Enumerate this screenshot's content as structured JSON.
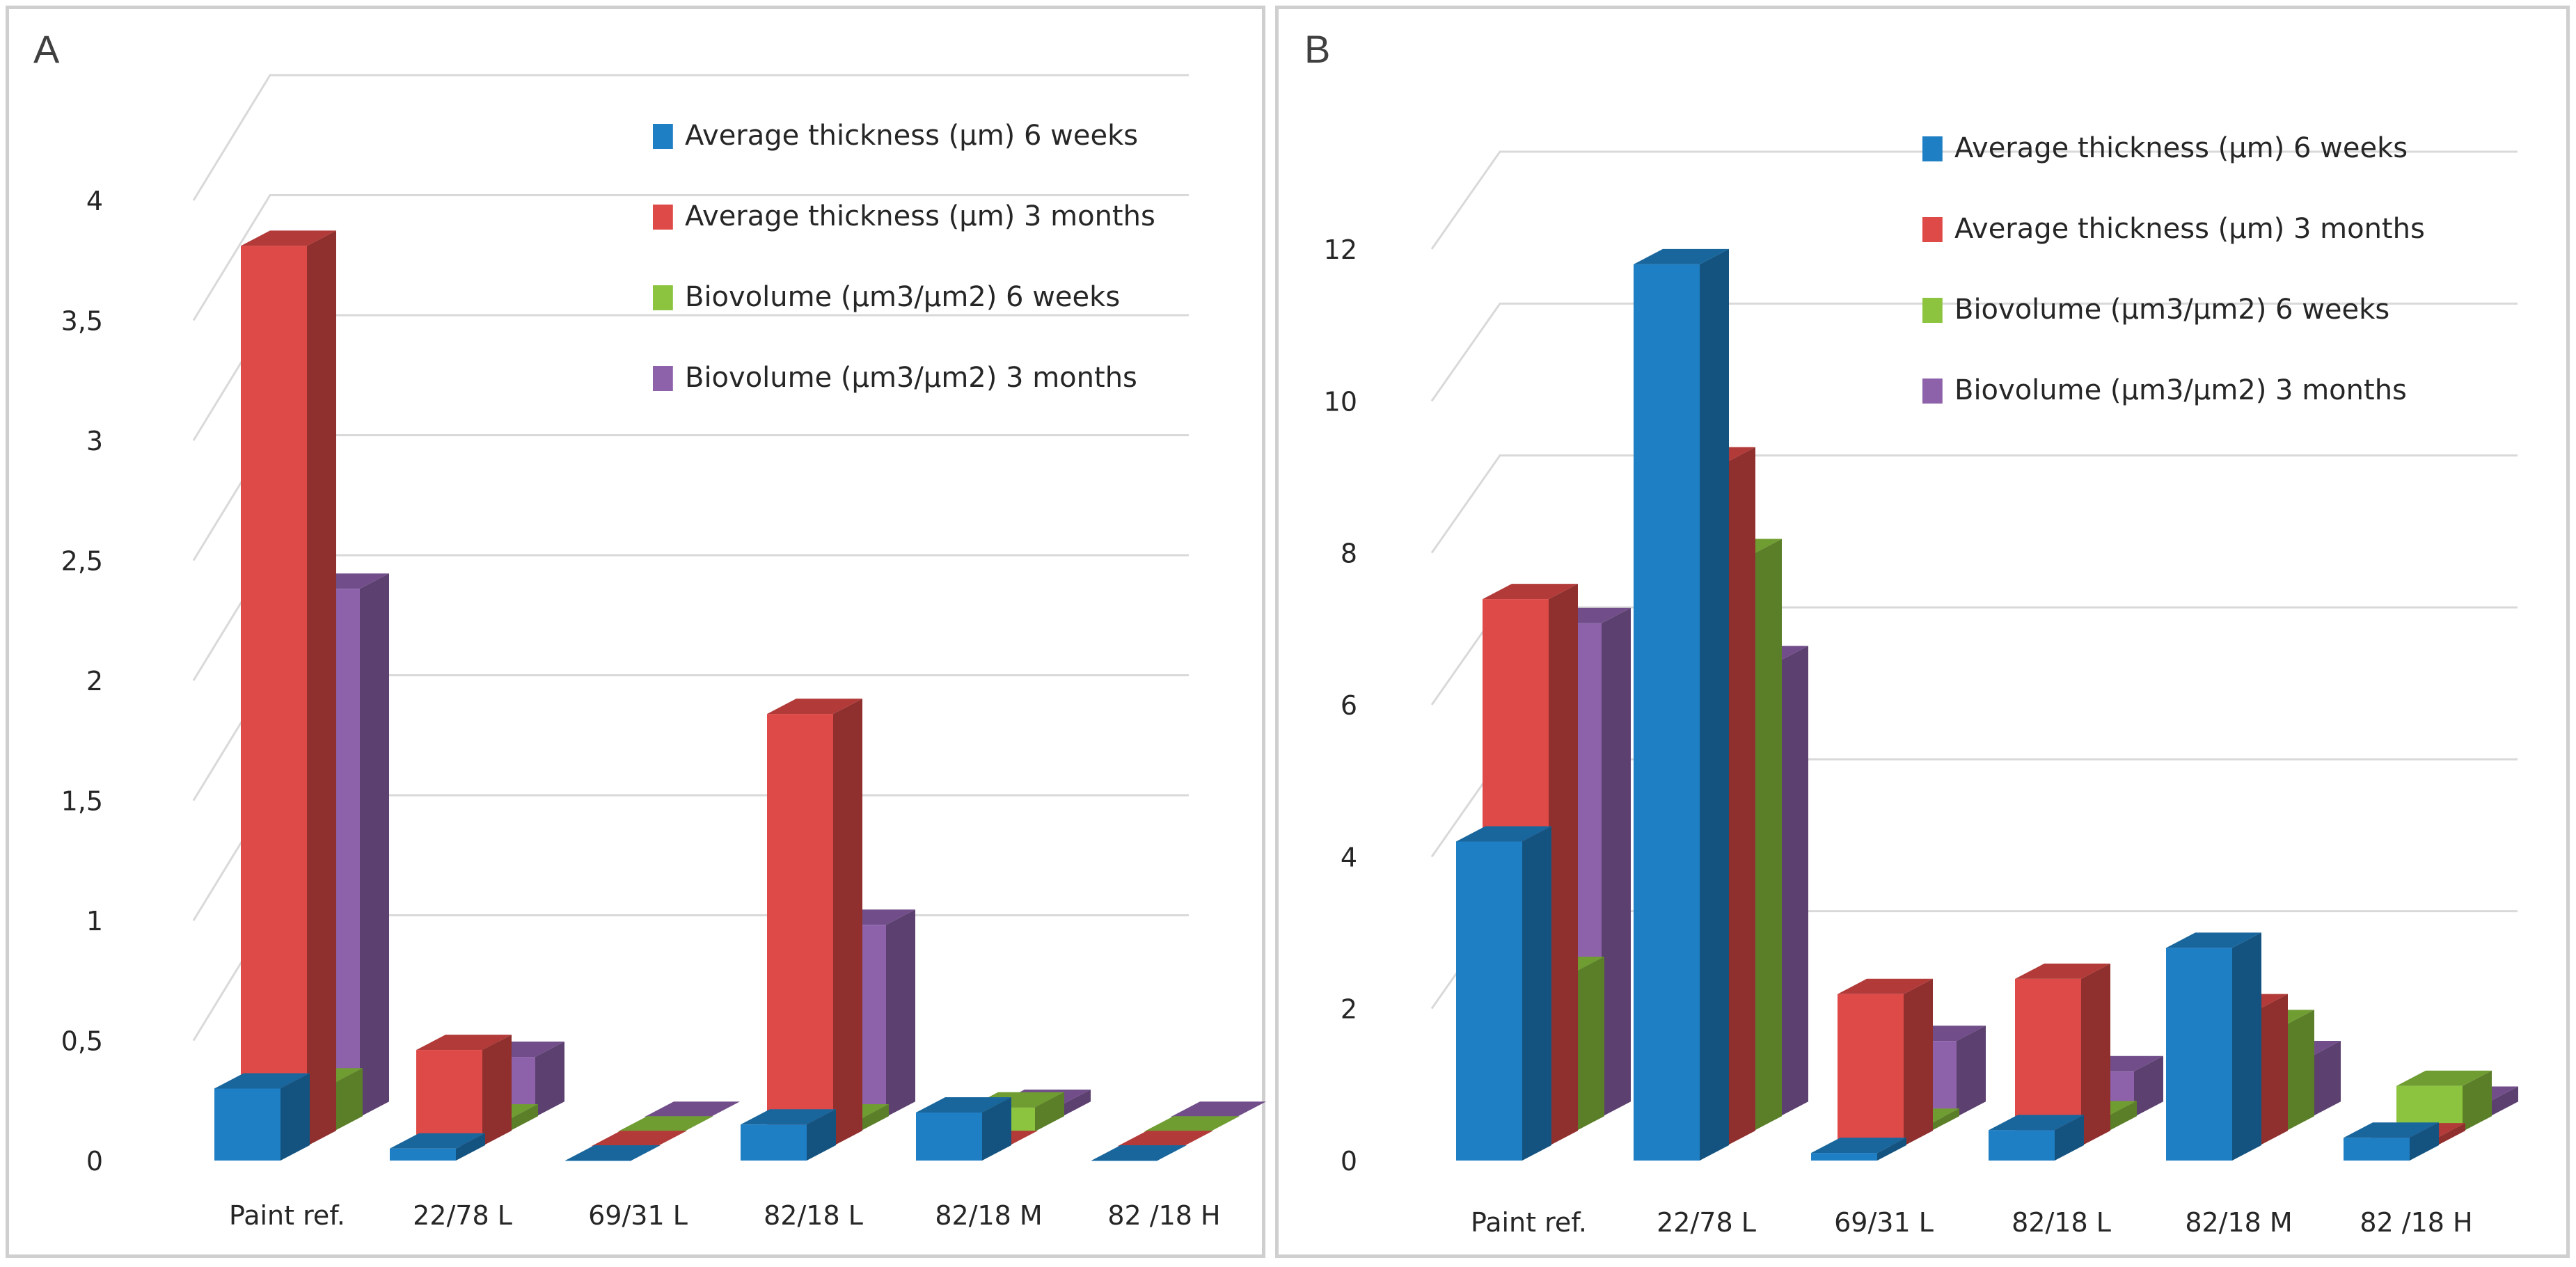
{
  "chart_data": [
    {
      "panel": "A",
      "type": "bar",
      "subtype": "3d-clustered-column",
      "title": "",
      "xlabel": "",
      "ylabel": "",
      "ylim": [
        0,
        4
      ],
      "ytick_labels": [
        "0",
        "0,5",
        "1",
        "1,5",
        "2",
        "2,5",
        "3",
        "3,5",
        "4"
      ],
      "gridlines": true,
      "legend_position": "top-right",
      "categories": [
        "Paint ref.",
        "22/78 L",
        "69/31 L",
        "82/18 L",
        "82/18 M",
        "82 /18 H"
      ],
      "series": [
        {
          "name": "Average thickness (µm) 6 weeks",
          "color": "#1f7fc4",
          "values": [
            0.3,
            0.05,
            0.0,
            0.15,
            0.2,
            0.0
          ]
        },
        {
          "name": "Average thickness (µm) 3 months",
          "color": "#de4a47",
          "values": [
            3.75,
            0.4,
            0.0,
            1.8,
            0.0,
            0.0
          ]
        },
        {
          "name": "Biovolume (µm3/µm2) 6 weeks",
          "color": "#8cc43f",
          "values": [
            0.2,
            0.05,
            0.0,
            0.05,
            0.1,
            0.0
          ]
        },
        {
          "name": "Biovolume (µm3/µm2) 3 months",
          "color": "#8d62ab",
          "values": [
            2.2,
            0.25,
            0.0,
            0.8,
            0.05,
            0.0
          ]
        }
      ]
    },
    {
      "panel": "B",
      "type": "bar",
      "subtype": "3d-clustered-column",
      "title": "",
      "xlabel": "",
      "ylabel": "",
      "ylim": [
        0,
        12
      ],
      "ytick_labels": [
        "0",
        "2",
        "4",
        "6",
        "8",
        "10",
        "12"
      ],
      "gridlines": true,
      "legend_position": "top-right",
      "categories": [
        "Paint ref.",
        "22/78 L",
        "69/31 L",
        "82/18 L",
        "82/18 M",
        "82 /18 H"
      ],
      "series": [
        {
          "name": "Average thickness (µm) 6 weeks",
          "color": "#1f7fc4",
          "values": [
            4.2,
            11.8,
            0.1,
            0.4,
            2.8,
            0.3
          ]
        },
        {
          "name": "Average thickness (µm) 3 months",
          "color": "#de4a47",
          "values": [
            7.2,
            9.0,
            2.0,
            2.2,
            1.8,
            0.1
          ]
        },
        {
          "name": "Biovolume (µm3/µm2) 6 weeks",
          "color": "#8cc43f",
          "values": [
            2.1,
            7.6,
            0.1,
            0.2,
            1.4,
            0.6
          ]
        },
        {
          "name": "Biovolume (µm3/µm2) 3 months",
          "color": "#8d62ab",
          "values": [
            6.5,
            6.0,
            1.0,
            0.6,
            0.8,
            0.2
          ]
        }
      ]
    }
  ]
}
